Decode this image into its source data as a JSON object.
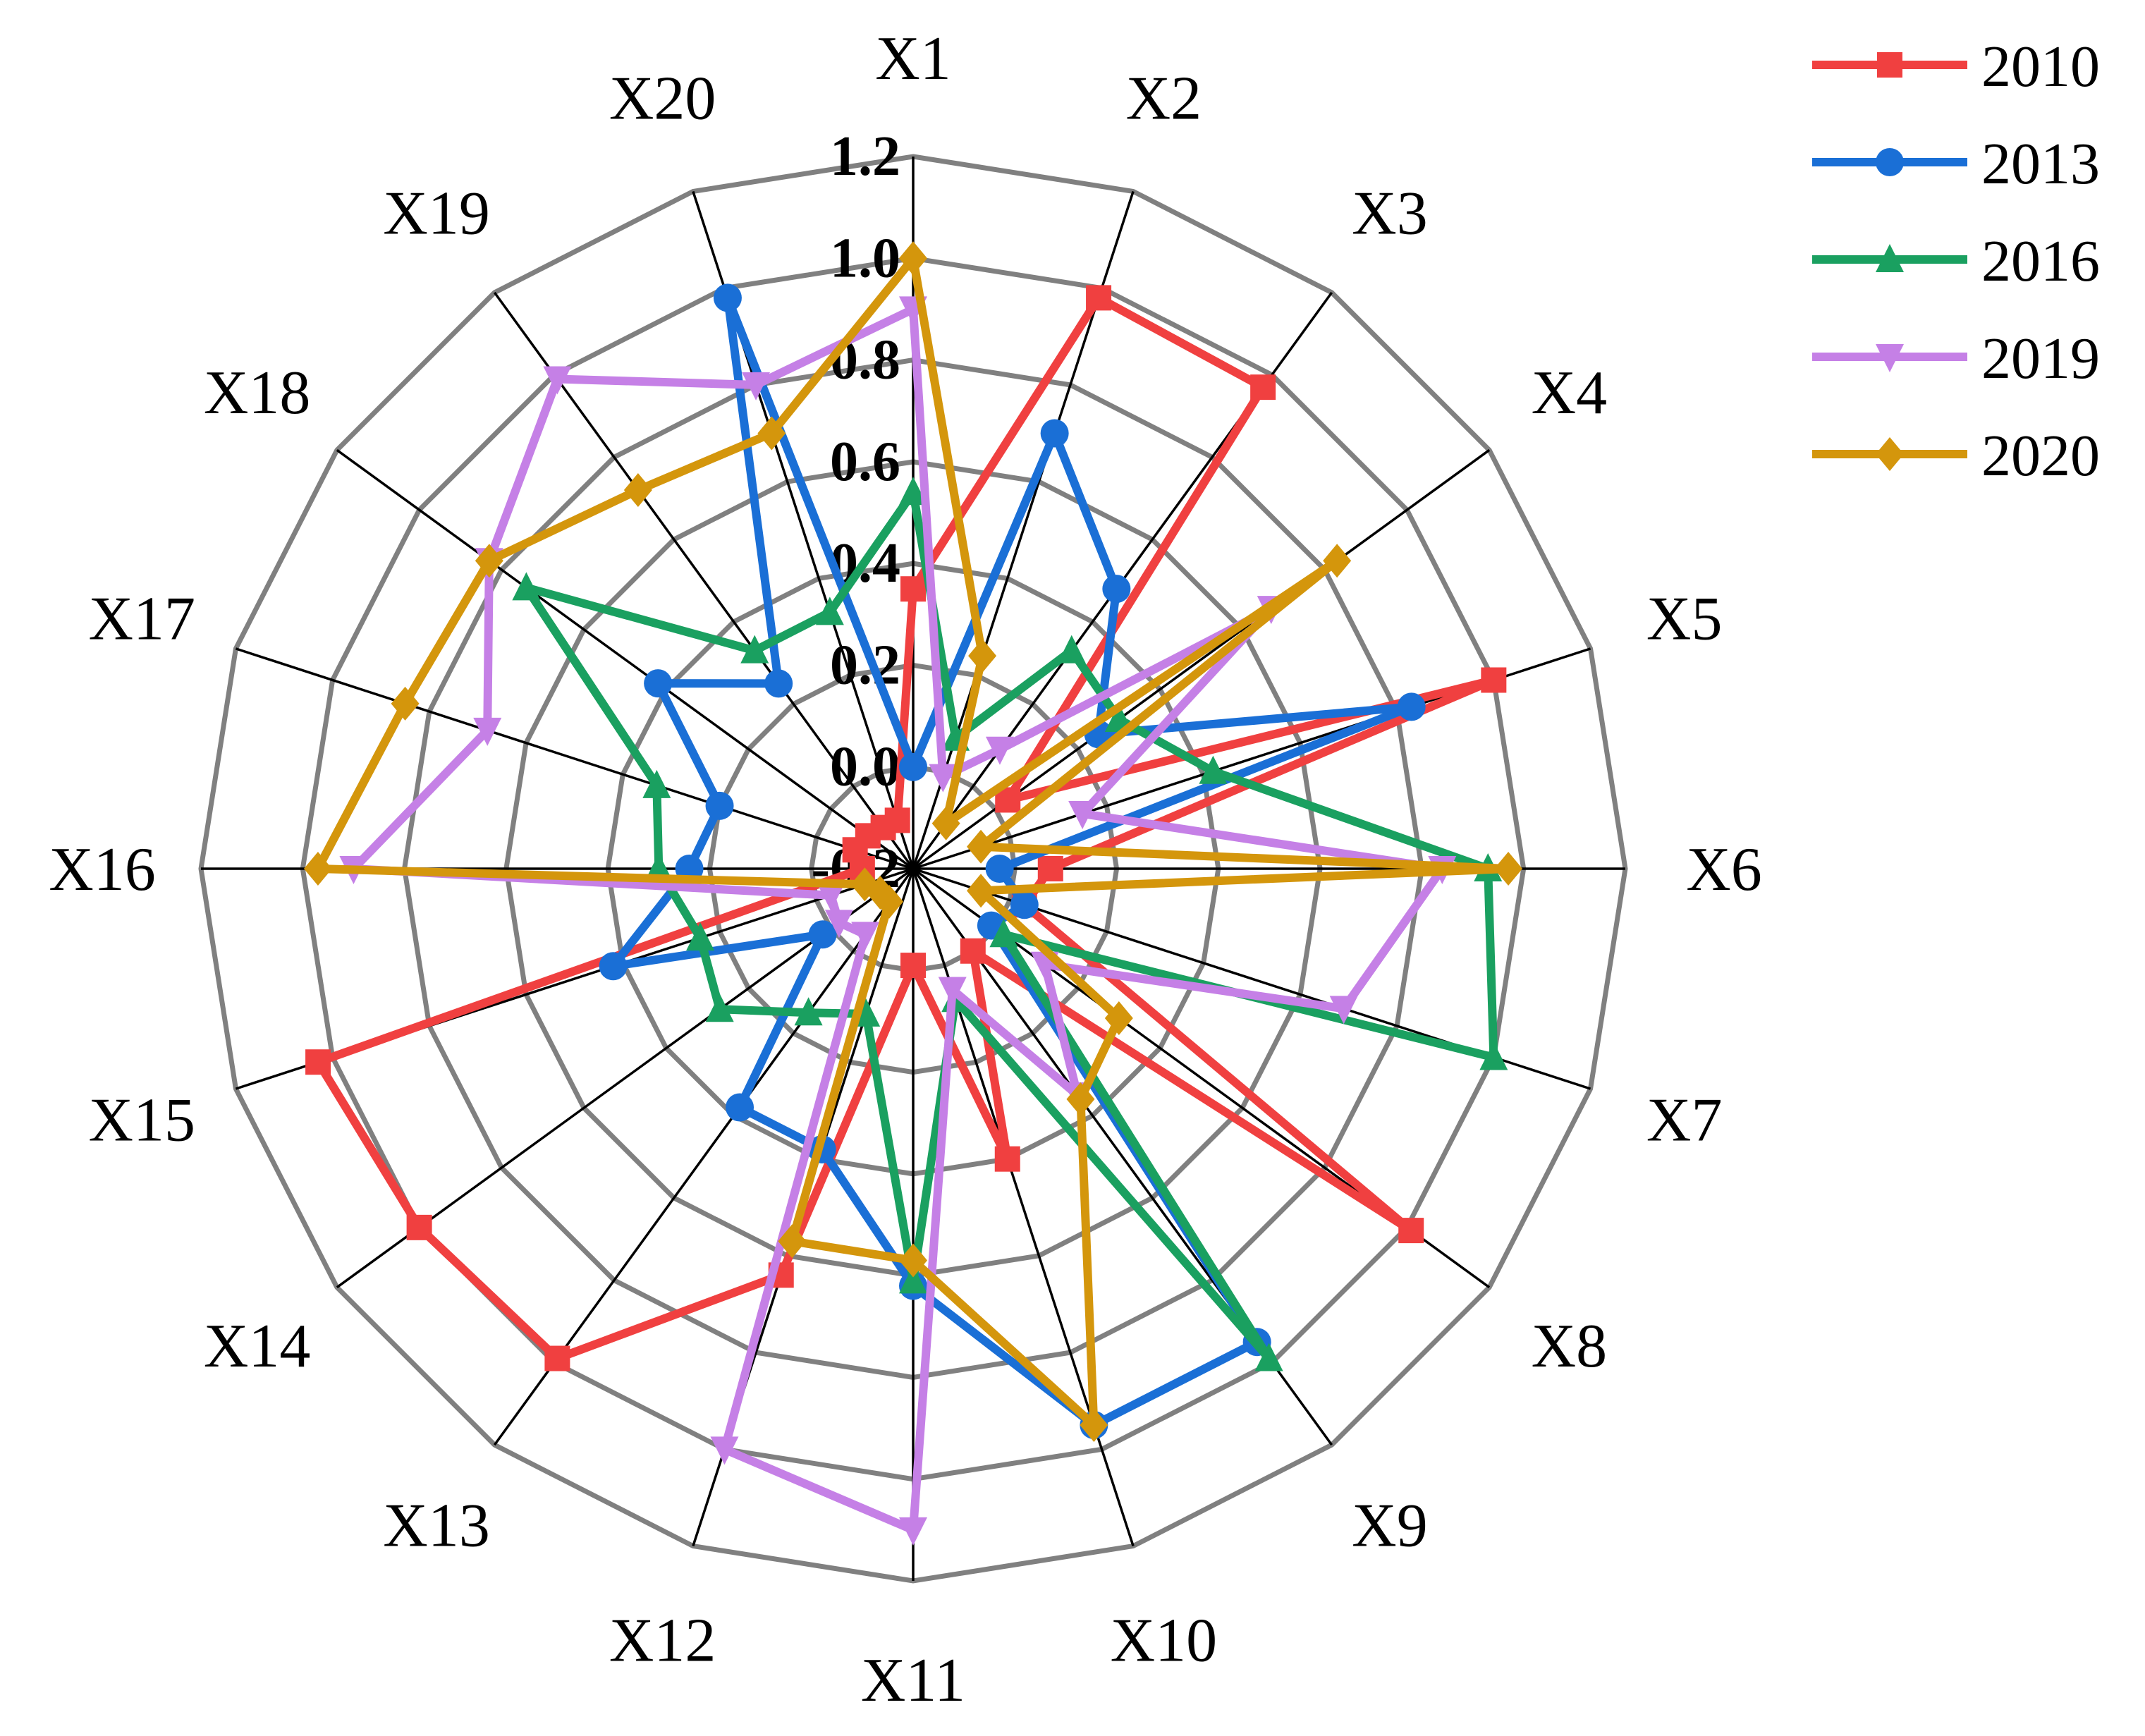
{
  "chart_data": {
    "type": "radar",
    "title": "",
    "axes": [
      "X1",
      "X2",
      "X3",
      "X4",
      "X5",
      "X6",
      "X7",
      "X8",
      "X9",
      "X10",
      "X11",
      "X12",
      "X13",
      "X14",
      "X15",
      "X16",
      "X17",
      "X18",
      "X19",
      "X20"
    ],
    "rlim": [
      -0.2,
      1.2
    ],
    "ticks": [
      "-0.2",
      "0.0",
      "0.2",
      "0.4",
      "0.6",
      "0.8",
      "1.0",
      "1.2"
    ],
    "tick_values": [
      -0.2,
      0.0,
      0.2,
      0.4,
      0.6,
      0.8,
      1.0,
      1.2
    ],
    "grid": true,
    "legend_position": "top-right",
    "series": [
      {
        "name": "2010",
        "color": "#f04040",
        "marker": "square",
        "values": [
          0.35,
          0.98,
          0.97,
          0.03,
          1.0,
          0.07,
          0.03,
          1.01,
          0.0,
          0.4,
          -0.01,
          0.64,
          0.99,
          1.0,
          1.03,
          -0.1,
          -0.08,
          -0.09,
          -0.1,
          -0.1
        ]
      },
      {
        "name": "2013",
        "color": "#1a6fd6",
        "marker": "circle",
        "values": [
          0.0,
          0.7,
          0.48,
          0.25,
          0.83,
          -0.03,
          0.03,
          -0.01,
          0.95,
          0.95,
          0.62,
          0.38,
          0.38,
          0.02,
          0.42,
          0.24,
          0.2,
          0.42,
          0.25,
          0.98
        ]
      },
      {
        "name": "2016",
        "color": "#1aa060",
        "marker": "triangle",
        "values": [
          0.54,
          0.07,
          0.33,
          0.3,
          0.42,
          0.93,
          1.0,
          0.02,
          0.99,
          0.07,
          0.61,
          0.1,
          0.15,
          0.27,
          0.24,
          0.3,
          0.33,
          0.74,
          0.33,
          0.33
        ]
      },
      {
        "name": "2019",
        "color": "#c580e6",
        "marker": "triangle-down",
        "values": [
          0.9,
          -0.01,
          0.09,
          0.67,
          0.15,
          0.84,
          0.69,
          0.12,
          0.35,
          0.05,
          1.1,
          1.0,
          -0.04,
          -0.02,
          -0.03,
          0.9,
          0.68,
          0.83,
          0.99,
          0.8
        ]
      },
      {
        "name": "2020",
        "color": "#d4960c",
        "marker": "diamond",
        "values": [
          1.0,
          0.24,
          -0.09,
          0.83,
          -0.06,
          0.97,
          -0.06,
          0.3,
          0.36,
          0.95,
          0.57,
          0.57,
          -0.12,
          -0.12,
          -0.1,
          0.97,
          0.85,
          0.83,
          0.72,
          0.7
        ]
      }
    ]
  }
}
